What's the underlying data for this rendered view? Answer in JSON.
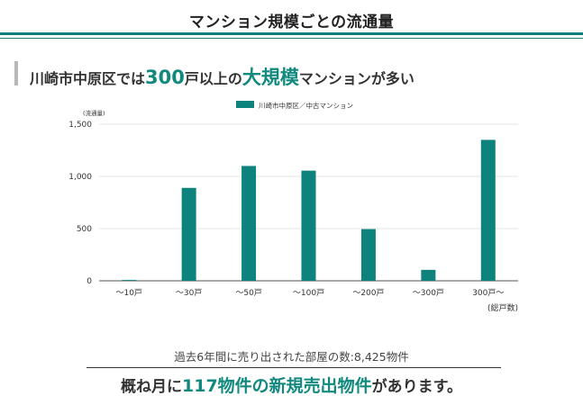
{
  "page": {
    "title": "マンション規模ごとの流通量",
    "headline": {
      "part1": "川崎市中原区では",
      "part2": "300",
      "part3": "戸以上の",
      "part4": "大規模",
      "part5": "マンションが多い"
    },
    "source_note": "過去6年間に売り出された部屋の数:8,425物件",
    "summary": {
      "part1": "概ね月に",
      "part2": "117物件の新規売出物件",
      "part3": "があります。"
    }
  },
  "colors": {
    "accent": "#0e7f7a",
    "bar": "#0e837d",
    "text": "#333333"
  },
  "chart_data": {
    "type": "bar",
    "categories": [
      "～10戸",
      "～30戸",
      "～50戸",
      "～100戸",
      "～200戸",
      "～300戸",
      "300戸～"
    ],
    "series": [
      {
        "name": "川崎市中原区／中古マンション",
        "values": [
          8,
          890,
          1100,
          1055,
          495,
          105,
          1350
        ]
      }
    ],
    "y_unit_label": "(流通量)",
    "x_unit_label": "(総戸数)",
    "yticks": [
      0,
      500,
      1000,
      1500
    ],
    "ytick_labels": [
      "0",
      "500",
      "1,000",
      "1,500"
    ],
    "ylim": [
      0,
      1500
    ],
    "grid": true,
    "legend": "top-center"
  }
}
